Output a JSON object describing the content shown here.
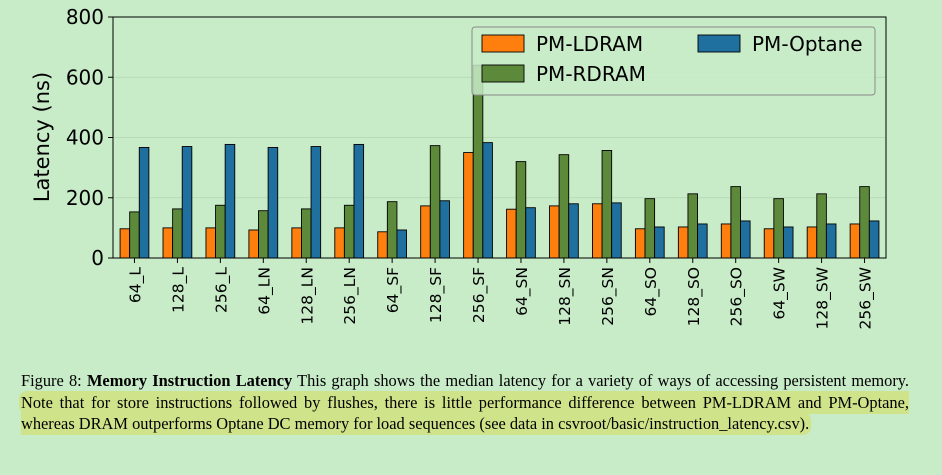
{
  "chart_data": {
    "type": "bar",
    "ylabel": "Latency (ns)",
    "ylim": [
      0,
      800
    ],
    "yticks": [
      "0",
      "200",
      "400",
      "600",
      "800"
    ],
    "grid": "horizontal",
    "legend_position": "top-right",
    "categories": [
      "64_L",
      "128_L",
      "256_L",
      "64_LN",
      "128_LN",
      "256_LN",
      "64_SF",
      "128_SF",
      "256_SF",
      "64_SN",
      "128_SN",
      "256_SN",
      "64_SO",
      "128_SO",
      "256_SO",
      "64_SW",
      "128_SW",
      "256_SW"
    ],
    "series": [
      {
        "name": "PM-LDRAM",
        "color": "#ff7f0e",
        "values": [
          97,
          100,
          100,
          93,
          100,
          100,
          87,
          173,
          350,
          162,
          173,
          180,
          97,
          103,
          113,
          97,
          103,
          113
        ]
      },
      {
        "name": "PM-RDRAM",
        "color": "#5d8a3a",
        "values": [
          153,
          163,
          175,
          157,
          163,
          175,
          187,
          373,
          640,
          320,
          343,
          357,
          197,
          213,
          237,
          197,
          213,
          237
        ]
      },
      {
        "name": "PM-Optane",
        "color": "#1f6f9f",
        "values": [
          367,
          370,
          377,
          367,
          370,
          377,
          93,
          190,
          383,
          167,
          180,
          183,
          103,
          113,
          123,
          103,
          113,
          123
        ]
      }
    ]
  },
  "caption": {
    "figure_label": "Figure 8:",
    "title": "Memory Instruction Latency",
    "text_plain": "This graph shows the median latency for a variety of ways of accessing persistent memory.",
    "text_highlighted": "Note that for store instructions followed by flushes, there is little performance difference between PM-LDRAM and PM-Optane, whereas DRAM outperforms Optane DC memory for load sequences (see data in csvroot/basic/instruction_latency.csv)."
  }
}
